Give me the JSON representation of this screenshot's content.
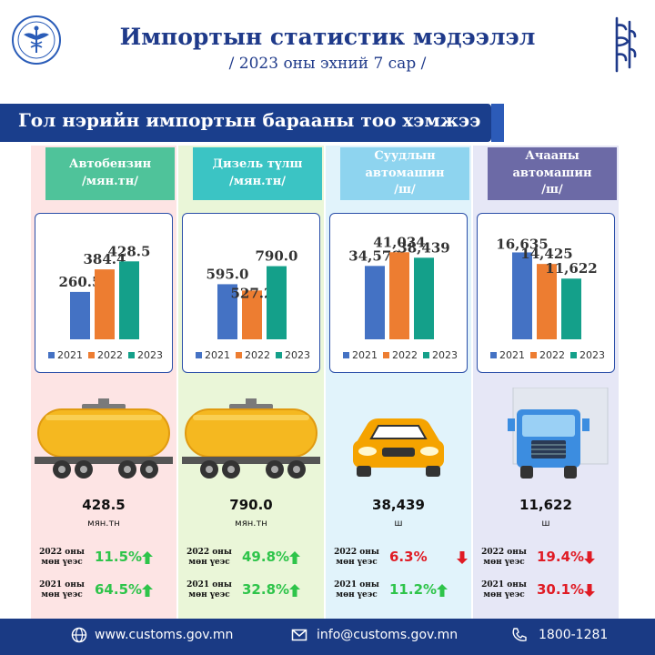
{
  "header": {
    "title": "Импортын статистик мэдээлэл",
    "subtitle": "/ 2023 оны эхний  7 сар /"
  },
  "banner": {
    "text": "Гол нэрийн импортын барааны тоо хэмжээ"
  },
  "legend": [
    "2021",
    "2022",
    "2023"
  ],
  "colors": {
    "y2021": "#4472c4",
    "y2022": "#ed7d31",
    "y2023": "#14a08a",
    "up": "#2ec44a",
    "down": "#e01b24"
  },
  "columns": [
    {
      "category_line1": "Автобензин",
      "category_line2": "/мян.тн/",
      "big_value": "428.5",
      "unit": "мян.тн",
      "cmp": [
        {
          "label_line1": "2022 оны",
          "label_line2": "мөн үеэс",
          "value": "11.5%",
          "dir": "up"
        },
        {
          "label_line1": "2021 оны",
          "label_line2": "мөн үеэс",
          "value": "64.5%",
          "dir": "up"
        }
      ]
    },
    {
      "category_line1": "Дизель түлш",
      "category_line2": "/мян.тн/",
      "big_value": "790.0",
      "unit": "мян.тн",
      "cmp": [
        {
          "label_line1": "2022 оны",
          "label_line2": "мөн үеэс",
          "value": "49.8%",
          "dir": "up"
        },
        {
          "label_line1": "2021 оны",
          "label_line2": "мөн үеэс",
          "value": "32.8%",
          "dir": "up"
        }
      ]
    },
    {
      "category_line1": "Суудлын",
      "category_line2": "автомашин",
      "category_line3": "/ш/",
      "big_value": "38,439",
      "unit": "ш",
      "cmp": [
        {
          "label_line1": "2022 оны",
          "label_line2": "мөн үеэс",
          "value": "6.3%",
          "dir": "down"
        },
        {
          "label_line1": "2021 оны",
          "label_line2": "мөн үеэс",
          "value": "11.2%",
          "dir": "up"
        }
      ]
    },
    {
      "category_line1": "Ачааны",
      "category_line2": "автомашин",
      "category_line3": "/ш/",
      "big_value": "11,622",
      "unit": "ш",
      "cmp": [
        {
          "label_line1": "2022 оны",
          "label_line2": "мөн үеэс",
          "value": "19.4%",
          "dir": "down"
        },
        {
          "label_line1": "2021 оны",
          "label_line2": "мөн үеэс",
          "value": "30.1%",
          "dir": "down"
        }
      ]
    }
  ],
  "chart_data": [
    {
      "type": "bar",
      "categories": [
        "2021",
        "2022",
        "2023"
      ],
      "values": [
        260.5,
        384.4,
        428.5
      ],
      "labels": [
        "260.5",
        "384.4",
        "428.5"
      ],
      "ylim": [
        0,
        560
      ]
    },
    {
      "type": "bar",
      "categories": [
        "2021",
        "2022",
        "2023"
      ],
      "values": [
        595.0,
        527.2,
        790.0
      ],
      "labels": [
        "595.0",
        "527.2",
        "790.0"
      ],
      "ylim": [
        0,
        1100
      ]
    },
    {
      "type": "bar",
      "categories": [
        "2021",
        "2022",
        "2023"
      ],
      "values": [
        34570,
        41034,
        38439
      ],
      "labels": [
        "34,570",
        "41,034",
        "38,439"
      ],
      "ylim": [
        0,
        48000
      ]
    },
    {
      "type": "bar",
      "categories": [
        "2021",
        "2022",
        "2023"
      ],
      "values": [
        16635,
        14425,
        11622
      ],
      "labels": [
        "16,635",
        "14,425",
        "11,622"
      ],
      "ylim": [
        0,
        19500
      ]
    }
  ],
  "footer": {
    "website": "www.customs.gov.mn",
    "email": "info@customs.gov.mn",
    "phone": "1800-1281"
  }
}
